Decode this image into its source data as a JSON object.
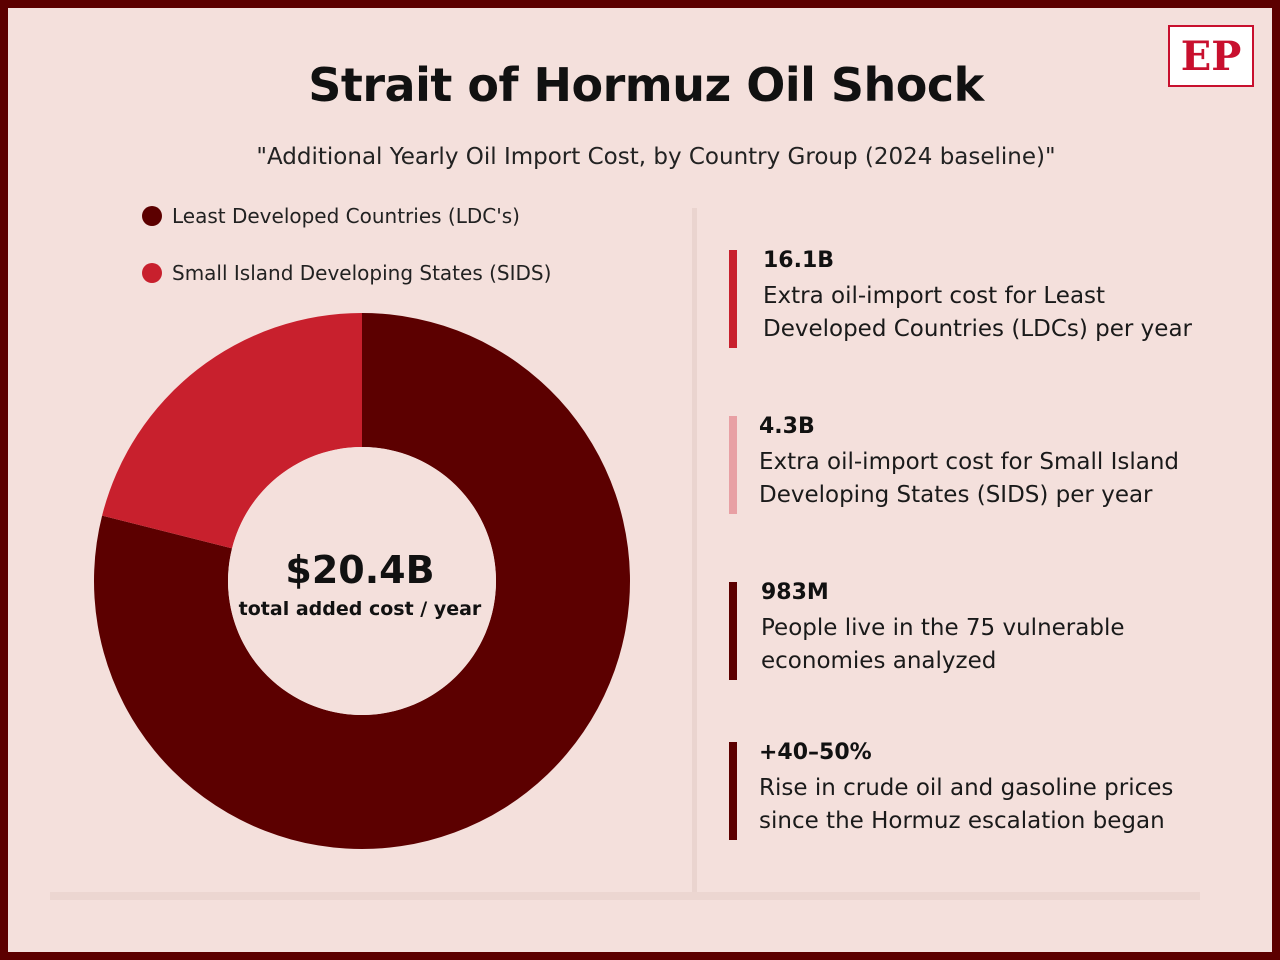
{
  "title": "Strait of Hormuz Oil Shock",
  "subtitle": "\"Additional Yearly Oil Import Cost, by Country Group (2024 baseline)\"",
  "logo": "EP",
  "colors": {
    "ldc": "#5c0000",
    "sids": "#c8202d",
    "background": "#f4e0dc",
    "sids_bar": "#e8a0a4"
  },
  "chart_data": {
    "type": "pie",
    "title": "Strait of Hormuz Oil Shock",
    "subtitle": "\"Additional Yearly Oil Import Cost, by Country Group (2024 baseline)\"",
    "legend": [
      "Least Developed Countries (LDC's)",
      "Small Island Developing States (SIDS)"
    ],
    "categories": [
      "Least Developed Countries (LDC's)",
      "Small Island Developing States (SIDS)"
    ],
    "values": [
      16.1,
      4.3
    ],
    "donut": true,
    "center_value": "$20.4B",
    "center_label": "total added cost / year",
    "legend_placement": "top-left"
  },
  "stats": [
    {
      "value": "16.1B",
      "desc": "Extra oil-import cost for Least Developed Countries (LDCs) per year",
      "color": "#c8202d"
    },
    {
      "value": "4.3B",
      "desc": "Extra oil-import cost for Small Island Developing States (SIDS) per year",
      "color": "#e8a0a4"
    },
    {
      "value": "983M",
      "desc": "People live in the 75 vulnerable economies analyzed",
      "color": "#5c0000"
    },
    {
      "value": "+40–50%",
      "desc": "Rise in crude oil and gasoline prices since the Hormuz escalation began",
      "color": "#5c0000"
    }
  ]
}
